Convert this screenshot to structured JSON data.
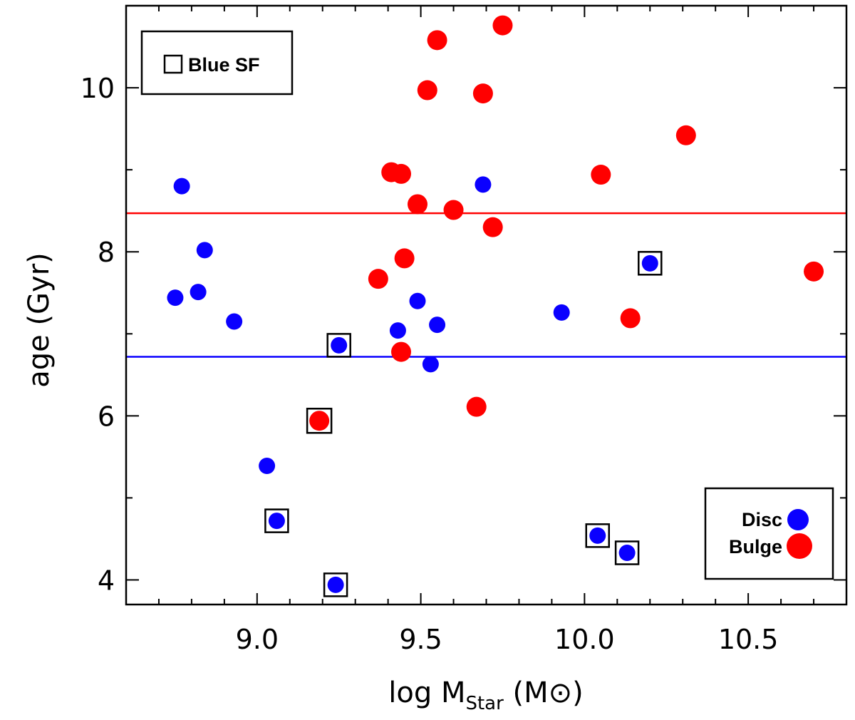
{
  "chart_data": {
    "type": "scatter",
    "xlabel": {
      "prefix": "log M",
      "subscript": "Star",
      "suffix": " (M",
      "suffix_close": ")"
    },
    "ylabel": "age (Gyr)",
    "xlim": [
      8.6,
      10.8
    ],
    "ylim": [
      3.7,
      11.0
    ],
    "x_ticks": [
      9.0,
      9.5,
      10.0,
      10.5
    ],
    "x_tick_labels": [
      "9.0",
      "9.5",
      "10.0",
      "10.5"
    ],
    "x_minor_step": 0.1,
    "y_ticks": [
      4,
      6,
      8,
      10
    ],
    "y_tick_labels": [
      "4",
      "6",
      "8",
      "10"
    ],
    "y_minor_step": 1,
    "colors": {
      "disc": "#0a00ff",
      "bulge": "#ff0000",
      "frame": "#000000"
    },
    "hlines": [
      {
        "name": "bulge-mean-age",
        "y": 8.47,
        "color": "#ff0000"
      },
      {
        "name": "disc-mean-age",
        "y": 6.72,
        "color": "#0a00ff"
      }
    ],
    "series": [
      {
        "name": "Disc",
        "color": "#0a00ff",
        "points": [
          {
            "x": 8.77,
            "y": 8.8,
            "sf": false
          },
          {
            "x": 8.75,
            "y": 7.44,
            "sf": false
          },
          {
            "x": 8.82,
            "y": 7.51,
            "sf": false
          },
          {
            "x": 8.84,
            "y": 8.02,
            "sf": false
          },
          {
            "x": 8.93,
            "y": 7.15,
            "sf": false
          },
          {
            "x": 9.03,
            "y": 5.39,
            "sf": false
          },
          {
            "x": 9.06,
            "y": 4.72,
            "sf": true
          },
          {
            "x": 9.24,
            "y": 3.94,
            "sf": true
          },
          {
            "x": 9.25,
            "y": 6.86,
            "sf": true
          },
          {
            "x": 9.43,
            "y": 7.04,
            "sf": false
          },
          {
            "x": 9.49,
            "y": 7.4,
            "sf": false
          },
          {
            "x": 9.53,
            "y": 6.63,
            "sf": false
          },
          {
            "x": 9.55,
            "y": 7.11,
            "sf": false
          },
          {
            "x": 9.69,
            "y": 8.82,
            "sf": false
          },
          {
            "x": 9.93,
            "y": 7.26,
            "sf": false
          },
          {
            "x": 10.04,
            "y": 4.54,
            "sf": true
          },
          {
            "x": 10.13,
            "y": 4.33,
            "sf": true
          },
          {
            "x": 10.2,
            "y": 7.86,
            "sf": true
          }
        ]
      },
      {
        "name": "Bulge",
        "color": "#ff0000",
        "points": [
          {
            "x": 9.19,
            "y": 5.94,
            "sf": true
          },
          {
            "x": 9.37,
            "y": 7.67,
            "sf": false
          },
          {
            "x": 9.41,
            "y": 8.97,
            "sf": false
          },
          {
            "x": 9.44,
            "y": 8.95,
            "sf": false
          },
          {
            "x": 9.44,
            "y": 6.78,
            "sf": false
          },
          {
            "x": 9.45,
            "y": 7.92,
            "sf": false
          },
          {
            "x": 9.49,
            "y": 8.58,
            "sf": false
          },
          {
            "x": 9.52,
            "y": 9.97,
            "sf": false
          },
          {
            "x": 9.55,
            "y": 10.58,
            "sf": false
          },
          {
            "x": 9.6,
            "y": 8.51,
            "sf": false
          },
          {
            "x": 9.67,
            "y": 6.11,
            "sf": false
          },
          {
            "x": 9.69,
            "y": 9.93,
            "sf": false
          },
          {
            "x": 9.72,
            "y": 8.3,
            "sf": false
          },
          {
            "x": 9.75,
            "y": 10.76,
            "sf": false
          },
          {
            "x": 10.05,
            "y": 8.94,
            "sf": false
          },
          {
            "x": 10.14,
            "y": 7.19,
            "sf": false
          },
          {
            "x": 10.31,
            "y": 9.42,
            "sf": false
          },
          {
            "x": 10.7,
            "y": 7.76,
            "sf": false
          }
        ]
      }
    ],
    "legends": {
      "marker": {
        "label": "Blue SF",
        "position": "top-left"
      },
      "series": {
        "labels": [
          "Disc",
          "Bulge"
        ],
        "position": "bottom-right"
      }
    }
  }
}
